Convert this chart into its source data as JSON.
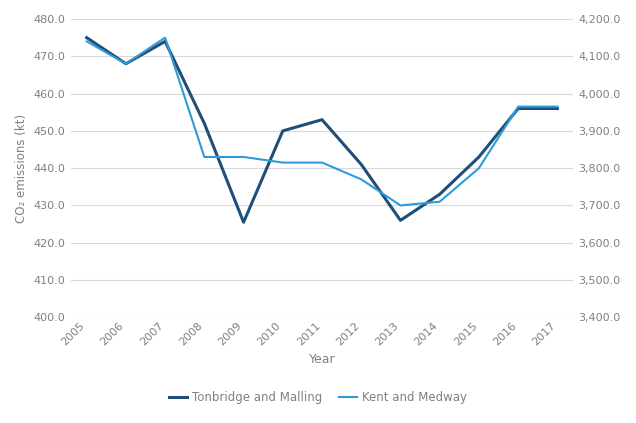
{
  "years": [
    2005,
    2006,
    2007,
    2008,
    2009,
    2010,
    2011,
    2012,
    2013,
    2014,
    2015,
    2016,
    2017
  ],
  "tonbridge": [
    475.0,
    468.0,
    474.0,
    452.0,
    425.5,
    450.0,
    453.0,
    441.0,
    426.0,
    433.0,
    443.0,
    456.0,
    456.0
  ],
  "kent": [
    474.0,
    468.0,
    475.0,
    443.0,
    443.0,
    441.5,
    441.5,
    437.0,
    430.0,
    431.0,
    440.0,
    456.5,
    456.5
  ],
  "tonbridge_color": "#1f4e79",
  "kent_color": "#2e9bd6",
  "ylim_left": [
    400.0,
    480.0
  ],
  "ylim_right": [
    3400.0,
    4200.0
  ],
  "yticks_left": [
    400.0,
    410.0,
    420.0,
    430.0,
    440.0,
    450.0,
    460.0,
    470.0,
    480.0
  ],
  "yticks_right": [
    3400.0,
    3500.0,
    3600.0,
    3700.0,
    3800.0,
    3900.0,
    4000.0,
    4100.0,
    4200.0
  ],
  "ylabel_left": "CO₂ emissions (kt)",
  "xlabel": "Year",
  "legend_tonbridge": "Tonbridge and Malling",
  "legend_kent": "Kent and Medway",
  "background_color": "#ffffff",
  "grid_color": "#d9d9d9",
  "tonbridge_lw": 2.2,
  "kent_lw": 1.5,
  "tick_label_color": "#808080",
  "axis_label_color": "#808080",
  "right_ytick_labels": [
    "3,400.0",
    "3,500.0",
    "3,600.0",
    "3,700.0",
    "3,800.0",
    "3,900.0",
    "4,000.0",
    "4,100.0",
    "4,200.0"
  ]
}
